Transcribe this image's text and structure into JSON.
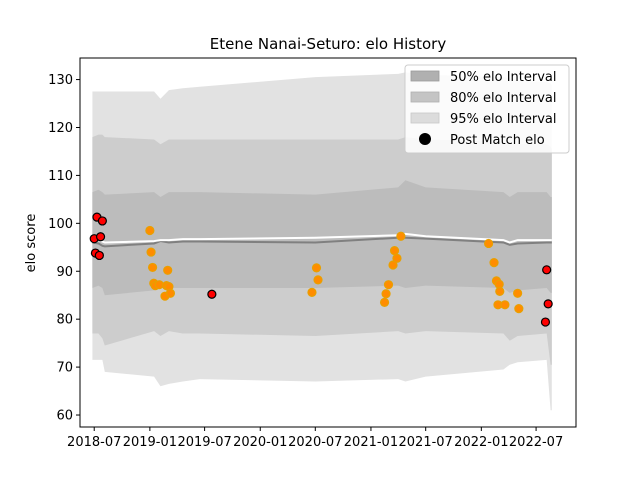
{
  "chart_data": {
    "type": "scatter",
    "title": "Etene Nanai-Seturo: elo History",
    "xlabel": "",
    "ylabel": "elo score",
    "xlim": [
      "2018-05-15",
      "2022-11-10"
    ],
    "ylim": [
      57.5,
      134.5
    ],
    "x_ticks": [
      "2018-07",
      "2019-01",
      "2019-07",
      "2020-01",
      "2020-07",
      "2021-01",
      "2021-07",
      "2022-01",
      "2022-07"
    ],
    "y_ticks": [
      60,
      70,
      80,
      90,
      100,
      110,
      120,
      130
    ],
    "grid": false,
    "legend_position": "top-right",
    "legend": [
      {
        "label": "50% elo Interval",
        "kind": "band",
        "color": "#b0b0b0"
      },
      {
        "label": "80% elo Interval",
        "kind": "band",
        "color": "#c4c4c4"
      },
      {
        "label": "95% elo Interval",
        "kind": "band",
        "color": "#dcdcdc"
      },
      {
        "label": "Post Match elo",
        "kind": "marker",
        "color": "#000000"
      }
    ],
    "colors": {
      "band95": "#e2e2e2",
      "band80": "#cdcdcd",
      "band50": "#bcbcbc",
      "mean_line": "#808080",
      "median_line": "#ffffff",
      "marker_fill_recent": "#ff0000",
      "marker_fill_old": "#ff8c00",
      "marker_edge": "#000000"
    },
    "band_x": [
      "2018-06-25",
      "2018-07-15",
      "2018-07-28",
      "2018-08-05",
      "2019-01-15",
      "2019-02-05",
      "2019-03-05",
      "2019-04-20",
      "2019-06-15",
      "2020-07-01",
      "2021-04-01",
      "2021-04-25",
      "2021-07-01",
      "2022-03-15",
      "2022-04-05",
      "2022-05-01",
      "2022-08-05",
      "2022-08-18",
      "2022-08-22"
    ],
    "band95": {
      "upper": [
        127.5,
        127.5,
        127.5,
        127.5,
        127.5,
        126.0,
        127.8,
        128.2,
        128.5,
        130.5,
        131.2,
        131.5,
        131.0,
        130.5,
        130.3,
        129.8,
        129.5,
        129.2,
        128.8
      ],
      "lower": [
        71.5,
        71.5,
        71.5,
        69.0,
        68.0,
        66.0,
        66.5,
        67.0,
        67.5,
        67.0,
        67.5,
        67.0,
        68.0,
        69.5,
        70.5,
        71.0,
        71.5,
        61.0,
        61.0
      ]
    },
    "band80": {
      "upper": [
        118.0,
        118.5,
        118.5,
        118.0,
        117.5,
        116.5,
        117.5,
        117.5,
        117.5,
        117.5,
        117.5,
        118.0,
        117.5,
        117.0,
        116.5,
        116.5,
        116.5,
        116.0,
        115.5
      ]
    },
    "band80_lower": [
      77.0,
      77.0,
      76.0,
      74.5,
      77.5,
      76.5,
      77.5,
      77.0,
      77.0,
      76.5,
      77.5,
      77.0,
      77.5,
      77.0,
      75.5,
      76.5,
      77.0,
      70.5,
      70.5
    ],
    "band50": {
      "upper": [
        106.5,
        107.0,
        106.5,
        106.0,
        106.5,
        105.5,
        106.5,
        106.5,
        106.5,
        106.0,
        107.5,
        109.0,
        107.5,
        106.5,
        105.5,
        106.5,
        106.5,
        105.5,
        105.5
      ],
      "lower": [
        86.5,
        87.0,
        86.5,
        85.0,
        86.0,
        86.5,
        86.5,
        86.5,
        86.5,
        86.5,
        87.0,
        86.5,
        87.0,
        86.5,
        85.5,
        86.0,
        86.5,
        85.5,
        85.5
      ]
    },
    "mean_line": [
      96.0,
      95.8,
      95.3,
      95.2,
      95.8,
      96.3,
      96.0,
      96.2,
      96.2,
      96.0,
      97.0,
      97.0,
      96.8,
      96.0,
      95.5,
      95.8,
      96.0,
      96.0,
      96.0
    ],
    "median_line": [
      96.5,
      96.5,
      96.2,
      96.0,
      96.3,
      96.5,
      96.5,
      96.7,
      96.7,
      97.0,
      97.5,
      97.8,
      97.3,
      96.5,
      96.0,
      96.5,
      96.5,
      96.5,
      96.5
    ],
    "points": [
      {
        "x": "2018-07-01",
        "y": 96.8,
        "recent": true
      },
      {
        "x": "2018-07-05",
        "y": 93.8,
        "recent": true
      },
      {
        "x": "2018-07-10",
        "y": 101.3,
        "recent": true
      },
      {
        "x": "2018-07-18",
        "y": 93.3,
        "recent": true
      },
      {
        "x": "2018-07-22",
        "y": 97.2,
        "recent": true
      },
      {
        "x": "2018-07-28",
        "y": 100.5,
        "recent": true
      },
      {
        "x": "2019-01-01",
        "y": 98.5,
        "recent": false
      },
      {
        "x": "2019-01-05",
        "y": 94.0,
        "recent": false
      },
      {
        "x": "2019-01-10",
        "y": 90.8,
        "recent": false
      },
      {
        "x": "2019-01-14",
        "y": 87.5,
        "recent": false
      },
      {
        "x": "2019-01-19",
        "y": 87.0,
        "recent": false
      },
      {
        "x": "2019-02-01",
        "y": 87.2,
        "recent": false
      },
      {
        "x": "2019-02-20",
        "y": 84.8,
        "recent": false
      },
      {
        "x": "2019-02-25",
        "y": 87.0,
        "recent": false
      },
      {
        "x": "2019-03-01",
        "y": 90.2,
        "recent": false
      },
      {
        "x": "2019-03-05",
        "y": 86.8,
        "recent": false
      },
      {
        "x": "2019-03-10",
        "y": 85.4,
        "recent": false
      },
      {
        "x": "2019-07-25",
        "y": 85.2,
        "recent": true
      },
      {
        "x": "2020-06-20",
        "y": 85.6,
        "recent": false
      },
      {
        "x": "2020-07-05",
        "y": 90.7,
        "recent": false
      },
      {
        "x": "2020-07-10",
        "y": 88.2,
        "recent": false
      },
      {
        "x": "2021-02-15",
        "y": 83.5,
        "recent": false
      },
      {
        "x": "2021-02-20",
        "y": 85.3,
        "recent": false
      },
      {
        "x": "2021-02-28",
        "y": 87.2,
        "recent": false
      },
      {
        "x": "2021-03-15",
        "y": 91.3,
        "recent": false
      },
      {
        "x": "2021-03-20",
        "y": 94.3,
        "recent": false
      },
      {
        "x": "2021-03-28",
        "y": 92.7,
        "recent": false
      },
      {
        "x": "2021-04-10",
        "y": 97.3,
        "recent": false
      },
      {
        "x": "2022-01-25",
        "y": 95.8,
        "recent": false
      },
      {
        "x": "2022-02-12",
        "y": 91.8,
        "recent": false
      },
      {
        "x": "2022-02-20",
        "y": 88.0,
        "recent": false
      },
      {
        "x": "2022-02-25",
        "y": 83.0,
        "recent": false
      },
      {
        "x": "2022-03-01",
        "y": 87.3,
        "recent": false
      },
      {
        "x": "2022-03-03",
        "y": 85.8,
        "recent": false
      },
      {
        "x": "2022-03-20",
        "y": 83.0,
        "recent": false
      },
      {
        "x": "2022-05-01",
        "y": 85.4,
        "recent": false
      },
      {
        "x": "2022-05-05",
        "y": 82.2,
        "recent": false
      },
      {
        "x": "2022-08-01",
        "y": 79.4,
        "recent": true
      },
      {
        "x": "2022-08-05",
        "y": 90.3,
        "recent": true
      },
      {
        "x": "2022-08-10",
        "y": 83.2,
        "recent": true
      }
    ]
  }
}
